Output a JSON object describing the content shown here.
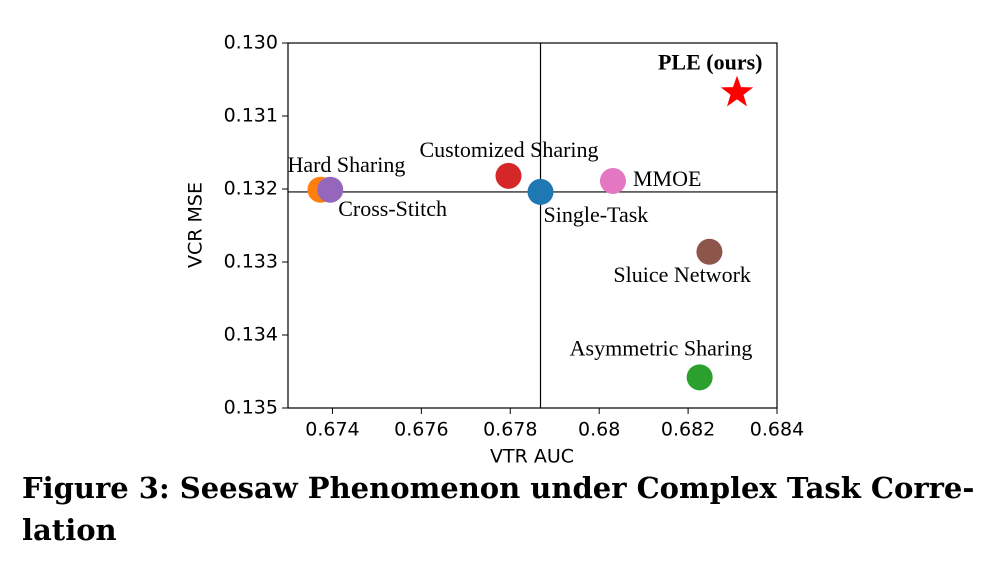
{
  "chart_data": {
    "type": "scatter",
    "x_label": "VTR AUC",
    "y_label": "VCR MSE",
    "xlim": [
      0.673,
      0.684
    ],
    "ylim": [
      0.135,
      0.13
    ],
    "xticks": [
      0.674,
      0.676,
      0.678,
      0.68,
      0.682,
      0.684
    ],
    "xtick_labels_note_free": true,
    "yticks": [
      {
        "value": 0.13,
        "label": "0.130"
      },
      0.131,
      0.132,
      0.133,
      0.134,
      0.135
    ],
    "series": [
      {
        "name": "Hard Sharing",
        "color": "#ff7f0e",
        "x": [
          0.67373
        ],
        "values": [
          0.13201
        ]
      },
      {
        "name": "Cross-Stitch",
        "color": "#9467bd",
        "x": [
          0.67395
        ],
        "values": [
          0.13201
        ]
      },
      {
        "name": "Customized Sharing",
        "color": "#d62728",
        "x": [
          0.67796
        ],
        "values": [
          0.13182
        ]
      },
      {
        "name": "Single-Task",
        "color": "#1f77b4",
        "x": [
          0.67868
        ],
        "values": [
          0.13204
        ]
      },
      {
        "name": "MMOE",
        "color": "#e377c2",
        "x": [
          0.68031
        ],
        "values": [
          0.13189
        ]
      },
      {
        "name": "Sluice Network",
        "color": "#8c564b",
        "x": [
          0.68248
        ],
        "values": [
          0.13286
        ]
      },
      {
        "name": "Asymmetric Sharing",
        "color": "#2ca02c",
        "x": [
          0.68226
        ],
        "values": [
          0.13458
        ]
      },
      {
        "name": "PLE (ours)",
        "color": "#ff0000",
        "x": [
          0.6831
        ],
        "values": [
          0.13068
        ],
        "marker": "star",
        "bold": true
      }
    ],
    "reference_series": 3,
    "caption": [
      "Figure 3: Seesaw Phenomenon under Complex Task Corre-",
      "lation"
    ]
  }
}
